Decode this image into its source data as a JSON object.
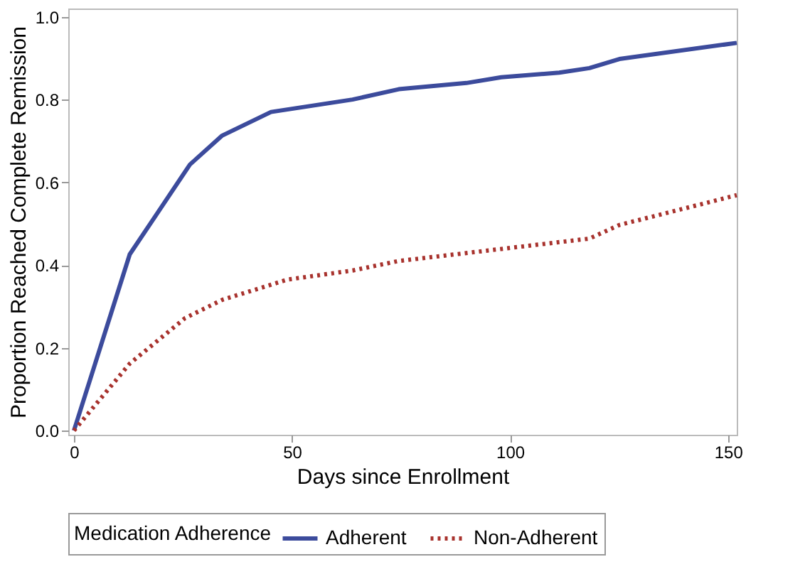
{
  "chart_data": {
    "type": "line",
    "xlabel": "Days since Enrollment",
    "ylabel": "Proportion Reached Complete Remission",
    "legend_title": "Medication Adherence",
    "series": [
      {
        "name": "Adherent",
        "color": "#3c4b9c",
        "line_style": "solid",
        "x": [
          0,
          12.8,
          19.1,
          26.6,
          34,
          45.2,
          63.9,
          74.5,
          90,
          98,
          111.3,
          118.2,
          125.1,
          152
        ],
        "values": [
          0,
          0.426,
          0.525,
          0.643,
          0.713,
          0.77,
          0.8,
          0.825,
          0.84,
          0.854,
          0.865,
          0.876,
          0.898,
          0.937
        ]
      },
      {
        "name": "Non-Adherent",
        "color": "#a8322d",
        "line_style": "dotted",
        "x": [
          0,
          12.8,
          25.5,
          34,
          49,
          63.9,
          74.5,
          98,
          118.2,
          125.1,
          152
        ],
        "values": [
          0,
          0.162,
          0.272,
          0.316,
          0.365,
          0.387,
          0.41,
          0.439,
          0.464,
          0.497,
          0.569
        ]
      }
    ],
    "xlim": [
      -1.3,
      152
    ],
    "ylim": [
      -0.01,
      1.02
    ],
    "xticks": [
      0,
      50,
      100,
      150
    ],
    "yticks": [
      {
        "value": 0,
        "label": "0.0"
      },
      {
        "value": 0.2,
        "label": "0.2"
      },
      {
        "value": 0.4,
        "label": "0.4"
      },
      {
        "value": 0.6,
        "label": "0.6"
      },
      {
        "value": 0.8,
        "label": "0.8"
      },
      {
        "value": 1,
        "label": "1.0"
      }
    ],
    "grid": false,
    "legend": "bottom",
    "marker": "none"
  }
}
